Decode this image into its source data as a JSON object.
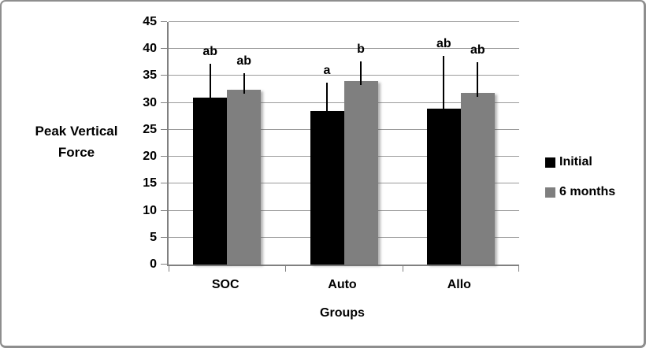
{
  "chart_data": {
    "type": "bar",
    "title": "",
    "categories": [
      "SOC",
      "Auto",
      "Allo"
    ],
    "series": [
      {
        "name": "Initial",
        "color": "#000000",
        "values": [
          31,
          28.5,
          29
        ],
        "error_plus": [
          6.3,
          5.2,
          9.7
        ],
        "sig_labels": [
          "ab",
          "a",
          "ab"
        ]
      },
      {
        "name": "6 months",
        "color": "#7f7f7f",
        "values": [
          32.5,
          34,
          31.8
        ],
        "error_plus": [
          3.0,
          3.7,
          5.7
        ],
        "sig_labels": [
          "ab",
          "b",
          "ab"
        ]
      }
    ],
    "ylabel_lines": [
      "Peak Vertical",
      "Force"
    ],
    "xlabel": "Groups",
    "ylim": [
      0,
      45
    ],
    "yticks": [
      0,
      5,
      10,
      15,
      20,
      25,
      30,
      35,
      40,
      45
    ],
    "grid": true,
    "legend_position": "right"
  },
  "colors": {
    "frame_border": "#8e8e8e",
    "axis": "#808080",
    "gridline": "#9a9a9a",
    "error_bar": "#000000",
    "background": "#ffffff"
  }
}
